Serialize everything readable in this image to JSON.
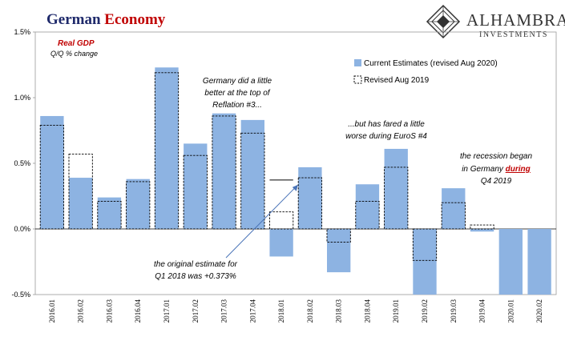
{
  "header": {
    "title_part1": "German",
    "title_part2": "Economy",
    "brand_name": "ALHAMBRA",
    "brand_sub": "INVESTMENTS"
  },
  "subtitle": {
    "line1": "Real GDP",
    "line2": "Q/Q % change"
  },
  "colors": {
    "title_navy": "#1f2a6b",
    "title_red": "#c00000",
    "bar_fill": "#8db3e2",
    "annotation_red": "#c00000"
  },
  "legend": {
    "current": "Current Estimates (revised Aug 2020)",
    "revised": "Revised Aug 2019"
  },
  "annotations": {
    "a1": [
      "Germany did a little",
      "better at the top of",
      "Reflation #3..."
    ],
    "a2": [
      "...but has fared a little",
      "worse during EuroS #4"
    ],
    "a3_line1": "the recession began",
    "a3_line2_pre": "in Germany ",
    "a3_line2_em": "during",
    "a3_line3": "Q4 2019",
    "a4": [
      "the original estimate for",
      "Q1 2018 was +0.373%"
    ]
  },
  "chart_data": {
    "type": "bar",
    "title": "German Economy",
    "subtitle": "Real GDP Q/Q % change",
    "categories": [
      "2016.01",
      "2016.02",
      "2016.03",
      "2016.04",
      "2017.01",
      "2017.02",
      "2017.03",
      "2017.04",
      "2018.01",
      "2018.02",
      "2018.03",
      "2018.04",
      "2019.01",
      "2019.02",
      "2019.03",
      "2019.04",
      "2020.01",
      "2020.02"
    ],
    "series": [
      {
        "name": "Current Estimates (revised Aug 2020)",
        "values": [
          0.86,
          0.39,
          0.24,
          0.38,
          1.23,
          0.65,
          0.88,
          0.83,
          -0.21,
          0.47,
          -0.33,
          0.34,
          0.61,
          -0.5,
          0.31,
          -0.02,
          -0.5,
          -0.5
        ]
      },
      {
        "name": "Revised Aug 2019",
        "values": [
          0.79,
          0.57,
          0.21,
          0.36,
          1.19,
          0.56,
          0.86,
          0.73,
          0.13,
          0.39,
          -0.1,
          0.21,
          0.47,
          -0.24,
          0.2,
          0.03,
          null,
          null
        ]
      }
    ],
    "original_estimate_q1_2018": 0.373,
    "ylim": [
      -0.5,
      1.5
    ],
    "yticks": [
      "1.5%",
      "1.0%",
      "0.5%",
      "0.0%",
      "-0.5%"
    ],
    "ytick_values": [
      1.5,
      1.0,
      0.5,
      0.0,
      -0.5
    ],
    "legend_position": "top-right",
    "grid": false
  }
}
